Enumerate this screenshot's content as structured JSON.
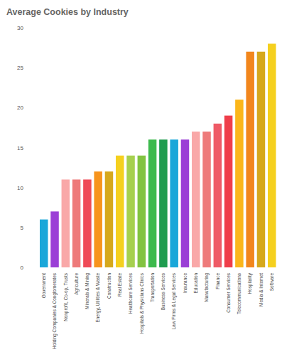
{
  "chart_data": {
    "type": "bar",
    "title": "Average Cookies by Industry",
    "categories": [
      "Government",
      "Holding Companies & Conglomerates",
      "Nonprofit, Co-op, Trusts",
      "Agriculture",
      "Minerals & Mining",
      "Energy, Utilities & Waste",
      "Construction",
      "Real Estate",
      "Healthcare Services",
      "Hospitals & Physicians Clinics",
      "Transportation",
      "Business Services",
      "Law Firms & Legal Services",
      "Insurance",
      "Education",
      "Manufacturing",
      "Finance",
      "Consumer Services",
      "Telecommunications",
      "Hospitality",
      "Media & Internet",
      "Software"
    ],
    "values": [
      6,
      7,
      11,
      11,
      11,
      12,
      12,
      14,
      14,
      14,
      16,
      16,
      16,
      16,
      17,
      17,
      18,
      19,
      21,
      27,
      27,
      28
    ],
    "colors": [
      "#1aa7d9",
      "#9b3fd6",
      "#f9a8a8",
      "#ee7a7a",
      "#ef4a57",
      "#f7941d",
      "#d6a81c",
      "#f5d01e",
      "#a6d04f",
      "#82c341",
      "#3dba4d",
      "#1e9c4f",
      "#1aa7d9",
      "#9b3fd6",
      "#f9a8a8",
      "#ee7a7a",
      "#ef5a66",
      "#ef3e4a",
      "#fbb61a",
      "#f2861c",
      "#d6a81c",
      "#f5d01e"
    ],
    "ylim": [
      0,
      30
    ],
    "yticks": [
      0,
      5,
      10,
      15,
      20,
      25,
      30
    ],
    "grid": false
  }
}
